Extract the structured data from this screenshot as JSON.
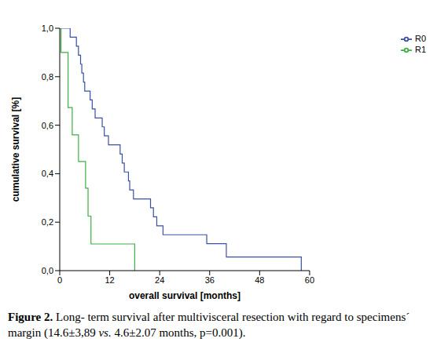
{
  "chart_data": {
    "type": "line",
    "x_label": "overall survival [months]",
    "y_label": "cumulative survival [%]",
    "xlim": [
      0,
      60
    ],
    "ylim": [
      0,
      1
    ],
    "xticks": [
      0,
      12,
      24,
      36,
      48,
      60
    ],
    "yticks": [
      {
        "value": 0,
        "label": "0,0"
      },
      {
        "value": 0.2,
        "label": "0,2"
      },
      {
        "value": 0.4,
        "label": "0,4"
      },
      {
        "value": 0.6,
        "label": "0,6"
      },
      {
        "value": 0.8,
        "label": "0,8"
      },
      {
        "value": 1,
        "label": "1,0"
      }
    ],
    "line_style": "step",
    "legend": "right",
    "grid": false,
    "series": [
      {
        "name": "R0",
        "color": "#3b4fa8",
        "x": [
          0,
          2.5,
          4,
          4.5,
          5,
          5.3,
          5.7,
          6,
          7.3,
          7.8,
          8.5,
          10.2,
          10.7,
          11.7,
          14.5,
          15,
          15.5,
          16.5,
          16.8,
          17.7,
          21.8,
          22.5,
          23.3,
          24.8,
          35.3,
          40,
          58
        ],
        "values": [
          1,
          0.963,
          0.926,
          0.889,
          0.852,
          0.815,
          0.778,
          0.741,
          0.704,
          0.667,
          0.63,
          0.593,
          0.556,
          0.519,
          0.481,
          0.444,
          0.407,
          0.37,
          0.333,
          0.296,
          0.259,
          0.222,
          0.185,
          0.148,
          0.111,
          0.056,
          0
        ]
      },
      {
        "name": "R1",
        "color": "#3cb043",
        "x": [
          0,
          0.3,
          2,
          3,
          4.5,
          6.2,
          6.8,
          7.5,
          18
        ],
        "values": [
          1,
          0.9,
          0.673,
          0.56,
          0.45,
          0.34,
          0.225,
          0.11,
          0
        ]
      }
    ],
    "caption": {
      "label": "Figure 2.",
      "parts": [
        "Long- term survival after multivisceral resection with regard to specimens´ margin (14.6±3,89 ",
        "vs.",
        " 4.6±2.07 months, p=0.001)."
      ]
    }
  }
}
